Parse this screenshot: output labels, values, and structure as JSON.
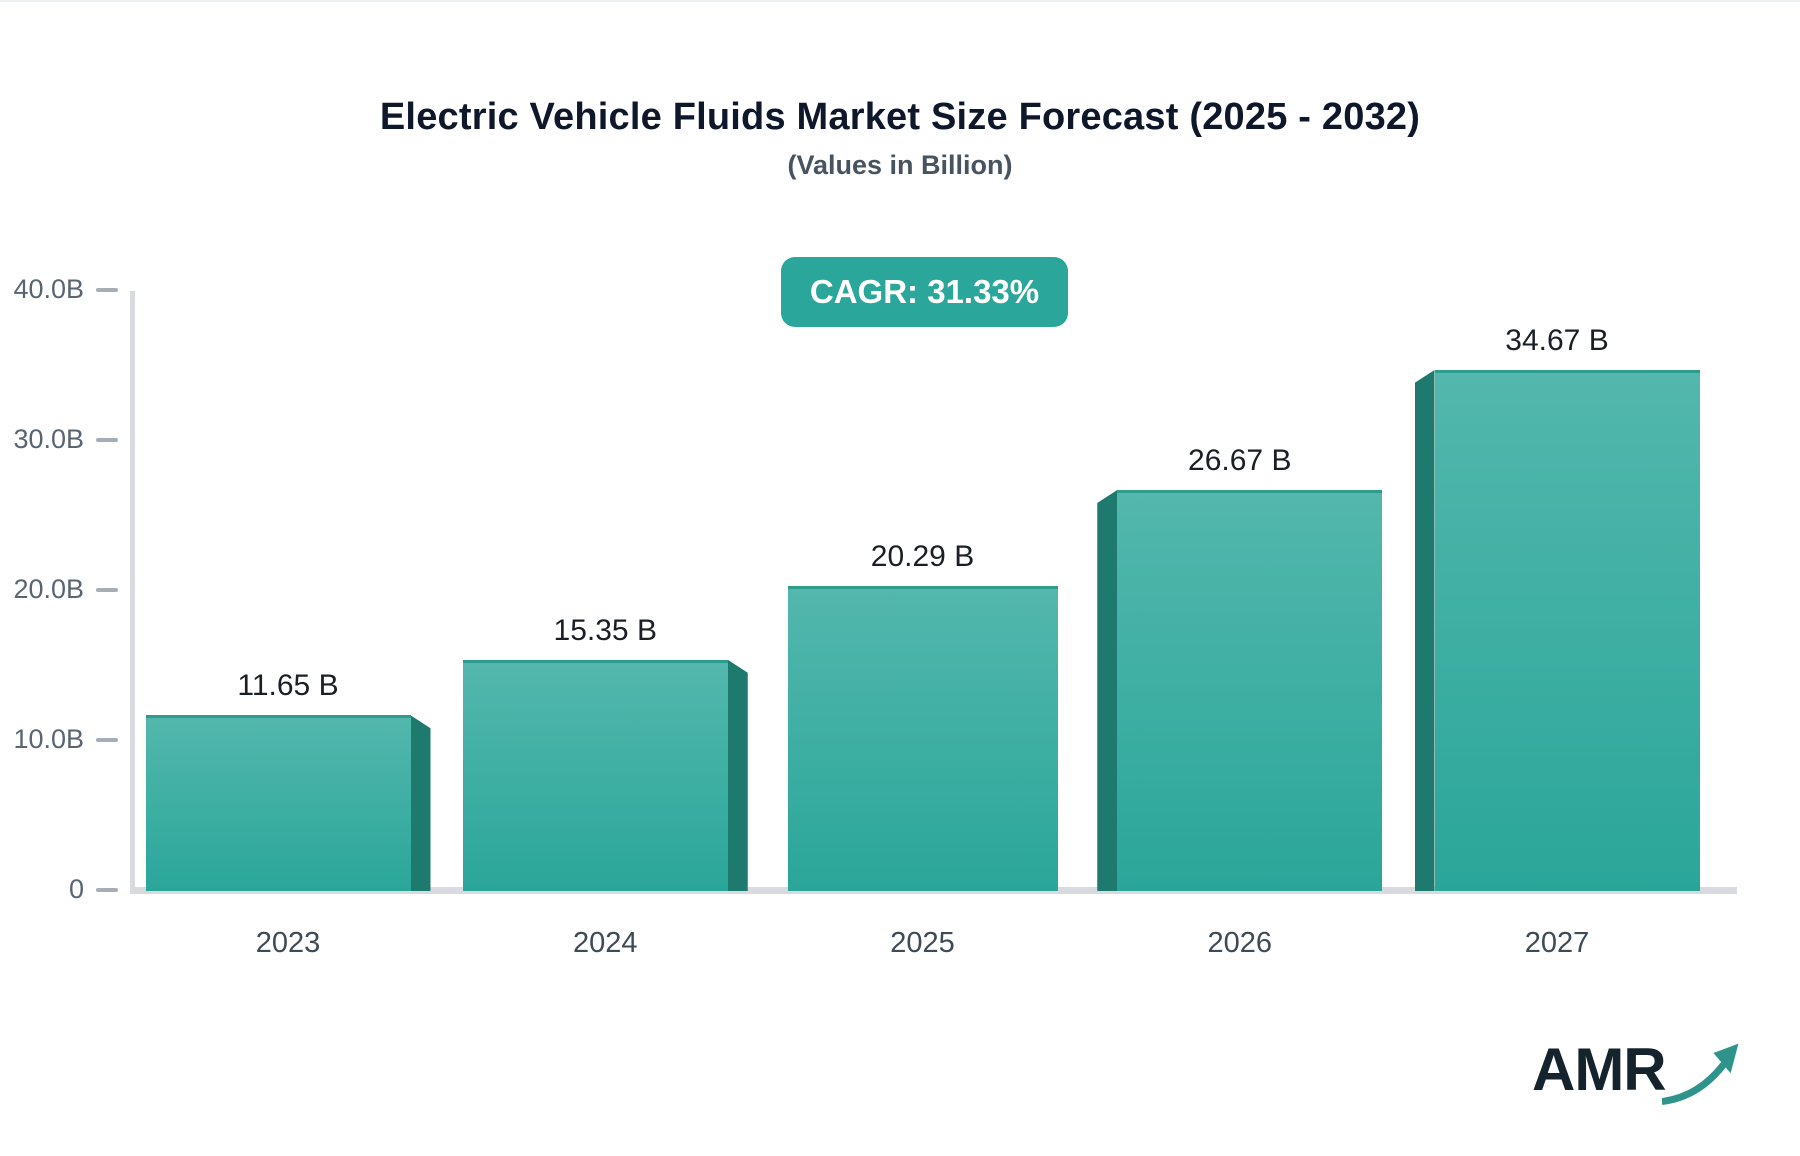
{
  "title": "Electric Vehicle Fluids Market Size Forecast (2025 - 2032)",
  "subtitle": "(Values in Billion)",
  "badge": {
    "label": "CAGR: 31.33%",
    "bg_color": "#2aa69a",
    "text_color": "#ffffff"
  },
  "chart_data": {
    "type": "bar",
    "categories": [
      "2023",
      "2024",
      "2025",
      "2026",
      "2027"
    ],
    "values": [
      11.65,
      15.35,
      20.29,
      26.67,
      34.67
    ],
    "value_labels": [
      "11.65 B",
      "15.35 B",
      "20.29 B",
      "26.67 B",
      "34.67 B"
    ],
    "ylabel": "",
    "xlabel": "",
    "ylim": [
      0,
      40
    ],
    "y_ticks": [
      {
        "value": 0,
        "label": "0"
      },
      {
        "value": 10,
        "label": "10.0B"
      },
      {
        "value": 20,
        "label": "20.0B"
      },
      {
        "value": 30,
        "label": "30.0B"
      },
      {
        "value": 40,
        "label": "40.0B"
      }
    ],
    "grid": "off",
    "legend": "none",
    "style": "3d-perspective-bars",
    "colors": {
      "bar_top": "#53b7ad",
      "bar_bottom": "#2aa699",
      "bar_top_edge": "#2f9c90",
      "bar_side": "#1e7a6f",
      "axis": "#d7dbdf",
      "tick": "#a6adb5",
      "y_tick_text": "#5a6572",
      "x_tick_text": "#3e4a56",
      "value_text": "#1a1f26"
    }
  },
  "logo": {
    "text": "AMR",
    "color": "#15242c",
    "arrow_color": "#2e948b"
  }
}
